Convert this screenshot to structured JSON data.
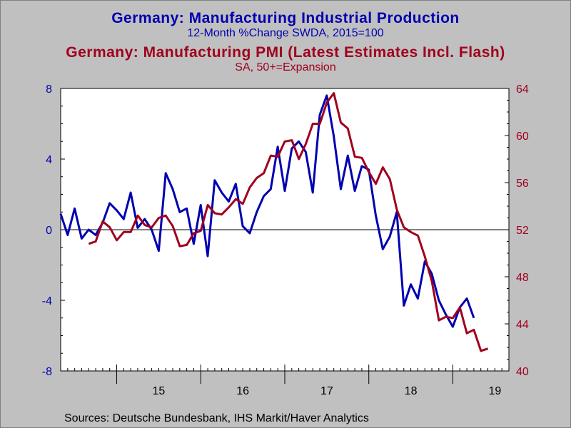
{
  "titles": {
    "title1": "Germany: Manufacturing Industrial Production",
    "subtitle1": "12-Month %Change     SWDA, 2015=100",
    "title2": "Germany: Manufacturing PMI (Latest Estimates Incl. Flash)",
    "subtitle2": "SA, 50+=Expansion",
    "source": "Sources:  Deutsche Bundesbank, IHS Markit/Haver Analytics"
  },
  "colors": {
    "series1": "#0000b0",
    "series2": "#a0001e",
    "plot_bg": "#ffffff",
    "frame_bg": "#c0c0c0"
  },
  "chart_data": {
    "type": "line",
    "title": "Germany: Manufacturing Industrial Production",
    "x_tick_labels": [
      "15",
      "16",
      "17",
      "18",
      "19"
    ],
    "x_start": 2014.333,
    "x_end": 2019.667,
    "left_axis": {
      "ylim": [
        -8,
        8
      ],
      "ticks": [
        -8,
        -4,
        0,
        4,
        8
      ],
      "labels": [
        "-8",
        "-4",
        "0",
        "4",
        "8"
      ]
    },
    "right_axis": {
      "ylim": [
        40,
        64
      ],
      "ticks": [
        40,
        44,
        48,
        52,
        56,
        60,
        64
      ],
      "labels": [
        "40",
        "44",
        "48",
        "52",
        "56",
        "60",
        "64"
      ]
    },
    "reference_line": 0,
    "series": [
      {
        "name": "Germany: Manufacturing Industrial Production",
        "axis": "left",
        "start": 2014.333,
        "step_months": 1,
        "values": [
          0.9,
          -0.3,
          1.2,
          -0.5,
          0.0,
          -0.3,
          0.4,
          1.5,
          1.1,
          0.6,
          2.1,
          0.1,
          0.6,
          0.0,
          -1.2,
          3.2,
          2.3,
          1.0,
          1.2,
          -0.8,
          1.4,
          -1.5,
          2.8,
          2.1,
          1.6,
          2.6,
          0.2,
          -0.2,
          1.0,
          1.9,
          2.3,
          4.7,
          2.2,
          4.6,
          5.0,
          4.4,
          2.1,
          6.5,
          7.6,
          5.3,
          2.3,
          4.2,
          2.2,
          3.6,
          3.4,
          0.8,
          -1.1,
          -0.4,
          1.0,
          -4.3,
          -3.1,
          -3.9,
          -1.8,
          -2.5,
          -4.0,
          -4.8,
          -5.5,
          -4.4,
          -3.9,
          -5.0
        ]
      },
      {
        "name": "Germany: Manufacturing PMI (Latest Estimates Incl. Flash)",
        "axis": "right",
        "start": 2014.667,
        "step_months": 1,
        "values": [
          50.8,
          51.0,
          52.7,
          52.2,
          51.1,
          51.8,
          51.8,
          53.2,
          52.4,
          52.2,
          53.0,
          53.2,
          52.3,
          50.6,
          50.7,
          51.7,
          51.9,
          54.1,
          53.4,
          53.3,
          53.9,
          54.6,
          54.2,
          55.6,
          56.4,
          56.8,
          58.3,
          58.2,
          59.5,
          59.6,
          58.0,
          59.3,
          61.0,
          61.0,
          62.8,
          63.6,
          61.1,
          60.6,
          58.2,
          58.1,
          56.9,
          55.9,
          57.3,
          56.3,
          53.7,
          52.2,
          51.8,
          51.5,
          49.7,
          47.6,
          44.3,
          44.6,
          44.5,
          45.4,
          43.2,
          43.5,
          41.7,
          41.9
        ]
      }
    ]
  }
}
